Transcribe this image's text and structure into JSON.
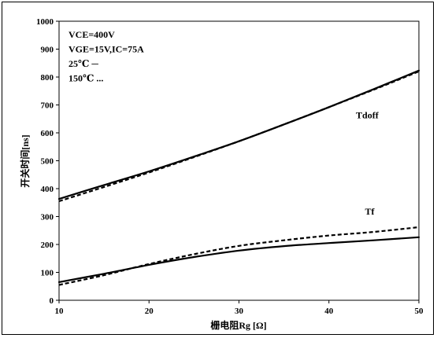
{
  "chart_data": {
    "type": "line",
    "xlabel": "栅电阻Rg [Ω]",
    "ylabel": "开关时间[ns]",
    "xlim": [
      10,
      50
    ],
    "ylim": [
      0,
      1000
    ],
    "x_ticks": [
      "10",
      "20",
      "30",
      "40",
      "50"
    ],
    "y_ticks": [
      "0",
      "100",
      "200",
      "300",
      "400",
      "500",
      "600",
      "700",
      "800",
      "900",
      "1000"
    ],
    "grid": false,
    "legend_placement": "top-left",
    "legend_lines": [
      "VCE=400V",
      "VGE=15V,IC=75A",
      "25℃  ─",
      "150℃ ..."
    ],
    "curve_labels": [
      {
        "text": "Tdoff",
        "x": 43,
        "y": 652
      },
      {
        "text": "Tf",
        "x": 44,
        "y": 307
      }
    ],
    "series": [
      {
        "name": "Tdoff 25℃",
        "style": "solid",
        "x": [
          10,
          15,
          20,
          25,
          30,
          35,
          40,
          45,
          50
        ],
        "y": [
          363,
          413,
          462,
          515,
          570,
          630,
          692,
          757,
          823
        ]
      },
      {
        "name": "Tdoff 150℃",
        "style": "dashed",
        "x": [
          10,
          15,
          20,
          25,
          30,
          35,
          40,
          45,
          50
        ],
        "y": [
          355,
          406,
          458,
          513,
          570,
          630,
          692,
          755,
          820
        ]
      },
      {
        "name": "Tf 25℃",
        "style": "solid",
        "x": [
          10,
          15,
          20,
          25,
          30,
          35,
          40,
          45,
          50
        ],
        "y": [
          65,
          95,
          127,
          155,
          178,
          194,
          205,
          215,
          226
        ]
      },
      {
        "name": "Tf 150℃",
        "style": "dashed",
        "x": [
          10,
          15,
          20,
          25,
          30,
          35,
          40,
          45,
          50
        ],
        "y": [
          55,
          90,
          130,
          165,
          195,
          215,
          232,
          245,
          262
        ]
      }
    ],
    "colors": {
      "line": "#000000",
      "axis": "#000000"
    }
  }
}
